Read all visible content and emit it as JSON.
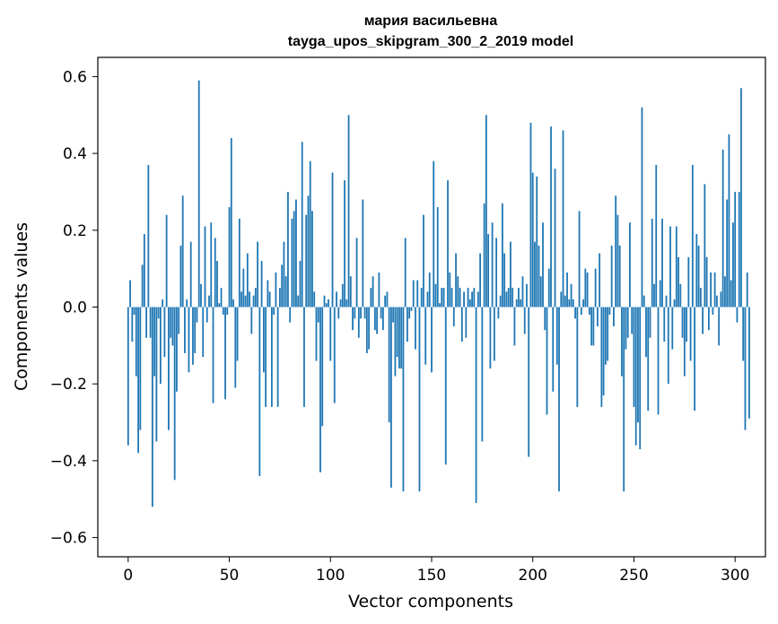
{
  "chart_data": {
    "type": "bar",
    "title_line1": "мария васильевна",
    "title_line2": "tayga_upos_skipgram_300_2_2019 model",
    "xlabel": "Vector components",
    "ylabel": "Components values",
    "xlim": [
      -15,
      315
    ],
    "ylim": [
      -0.65,
      0.65
    ],
    "xticks": [
      0,
      50,
      100,
      150,
      200,
      250,
      300
    ],
    "xtick_labels": [
      "0",
      "50",
      "100",
      "150",
      "200",
      "250",
      "300"
    ],
    "yticks": [
      -0.6,
      -0.4,
      -0.2,
      0.0,
      0.2,
      0.4,
      0.6
    ],
    "ytick_labels": [
      "−0.6",
      "−0.4",
      "−0.2",
      "0.0",
      "0.2",
      "0.4",
      "0.6"
    ],
    "bar_color": "#1f77b4",
    "values": [
      -0.36,
      0.07,
      -0.09,
      -0.02,
      -0.18,
      -0.38,
      -0.32,
      0.11,
      0.19,
      -0.08,
      0.37,
      -0.08,
      -0.52,
      -0.18,
      -0.35,
      -0.03,
      -0.2,
      0.02,
      -0.13,
      0.24,
      -0.32,
      -0.08,
      -0.1,
      -0.45,
      -0.22,
      -0.07,
      0.16,
      0.29,
      -0.12,
      0.02,
      -0.17,
      0.17,
      -0.15,
      -0.12,
      -0.04,
      0.59,
      0.06,
      -0.13,
      0.21,
      -0.04,
      0.03,
      0.22,
      -0.25,
      0.18,
      0.12,
      0.01,
      0.05,
      -0.02,
      -0.24,
      -0.02,
      0.26,
      0.44,
      0.02,
      -0.21,
      -0.14,
      0.23,
      0.04,
      0.1,
      0.03,
      0.14,
      0.04,
      -0.07,
      0.03,
      0.05,
      0.17,
      -0.44,
      0.12,
      -0.17,
      -0.26,
      0.07,
      0.04,
      -0.26,
      -0.02,
      0.09,
      -0.26,
      0.05,
      0.11,
      0.17,
      0.08,
      0.3,
      -0.04,
      0.23,
      0.25,
      0.28,
      0.03,
      0.12,
      0.43,
      -0.26,
      0.24,
      0.29,
      0.38,
      0.25,
      0.04,
      -0.14,
      -0.04,
      -0.43,
      -0.31,
      0.03,
      0.01,
      0.02,
      -0.14,
      0.35,
      -0.25,
      0.04,
      -0.03,
      0.02,
      0.06,
      0.33,
      0.02,
      0.5,
      0.08,
      -0.06,
      -0.03,
      0.18,
      -0.08,
      -0.03,
      0.28,
      -0.03,
      -0.12,
      -0.11,
      0.05,
      0.08,
      -0.06,
      -0.07,
      0.09,
      -0.03,
      -0.06,
      0.03,
      0.04,
      -0.3,
      -0.47,
      -0.04,
      -0.18,
      -0.13,
      -0.16,
      -0.16,
      -0.48,
      0.18,
      -0.09,
      -0.03,
      -0.01,
      0.07,
      -0.11,
      0.07,
      -0.48,
      0.05,
      0.24,
      -0.15,
      0.04,
      0.09,
      -0.17,
      0.38,
      0.06,
      0.26,
      0.01,
      0.05,
      0.05,
      -0.41,
      0.33,
      0.09,
      0.05,
      -0.05,
      0.14,
      0.08,
      0.05,
      -0.09,
      0.04,
      -0.08,
      0.05,
      0.02,
      0.04,
      0.05,
      -0.51,
      0.04,
      0.14,
      -0.35,
      0.27,
      0.5,
      0.19,
      -0.16,
      0.22,
      -0.14,
      0.18,
      -0.03,
      0.03,
      0.27,
      0.14,
      0.04,
      0.05,
      0.17,
      0.05,
      -0.1,
      0.02,
      0.05,
      0.02,
      0.08,
      -0.07,
      0.06,
      -0.39,
      0.48,
      0.35,
      0.17,
      0.34,
      0.16,
      0.08,
      0.22,
      -0.06,
      -0.28,
      0.1,
      0.47,
      -0.22,
      0.36,
      -0.15,
      -0.48,
      0.04,
      0.46,
      0.03,
      0.09,
      0.02,
      0.06,
      0.02,
      -0.03,
      -0.26,
      0.25,
      -0.02,
      0.02,
      0.1,
      0.09,
      -0.02,
      -0.1,
      -0.1,
      0.1,
      -0.05,
      0.14,
      -0.26,
      -0.23,
      -0.15,
      -0.14,
      -0.02,
      0.16,
      -0.05,
      0.29,
      0.24,
      0.16,
      -0.18,
      -0.48,
      -0.11,
      -0.08,
      0.22,
      -0.07,
      -0.26,
      -0.36,
      -0.3,
      -0.37,
      0.52,
      0.03,
      -0.13,
      -0.27,
      -0.08,
      0.23,
      0.06,
      0.37,
      -0.28,
      0.07,
      0.23,
      -0.09,
      0.03,
      -0.2,
      0.21,
      -0.11,
      0.02,
      0.21,
      0.13,
      0.06,
      -0.08,
      -0.18,
      -0.09,
      0.13,
      -0.14,
      0.37,
      -0.27,
      0.19,
      0.16,
      0.05,
      -0.07,
      0.32,
      0.13,
      -0.06,
      0.09,
      -0.02,
      0.09,
      0.03,
      -0.1,
      0.04,
      0.41,
      0.08,
      0.28,
      0.45,
      0.07,
      0.22,
      0.3,
      -0.04,
      0.3,
      0.57,
      -0.14,
      -0.32,
      0.09,
      -0.29
    ]
  }
}
